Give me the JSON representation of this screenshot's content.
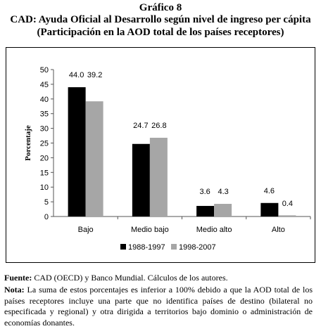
{
  "header": {
    "figure_number": "Gráfico 8",
    "title": "CAD: Ayuda Oficial al Desarrollo según nivel de ingreso per cápita",
    "subtitle": "(Participación en la AOD total de los países receptores)"
  },
  "chart_data": {
    "type": "bar",
    "categories": [
      "Bajo",
      "Medio bajo",
      "Medio alto",
      "Alto"
    ],
    "series": [
      {
        "name": "1988-1997",
        "values": [
          44.0,
          24.7,
          3.6,
          4.6
        ],
        "labels": [
          "44.0",
          "24.7",
          "3.6",
          "4.6"
        ],
        "color": "#000000"
      },
      {
        "name": "1998-2007",
        "values": [
          39.2,
          26.8,
          4.3,
          0.4
        ],
        "labels": [
          "39.2",
          "26.8",
          "4.3",
          "0.4"
        ],
        "color": "#a6a6a6"
      }
    ],
    "ylabel": "Porcentaje",
    "xlabel": "",
    "ylim": [
      0,
      50
    ],
    "yticks": [
      0,
      5,
      10,
      15,
      20,
      25,
      30,
      35,
      40,
      45,
      50
    ],
    "grid": false,
    "legend": "bottom"
  },
  "footer": {
    "source_label": "Fuente:",
    "source_text": " CAD (OECD) y Banco Mundial. Cálculos de los autores.",
    "note_label": "Nota:",
    "note_text": " La suma de estos porcentajes es inferior a 100% debido a que la AOD total de los países receptores incluye una parte que no identifica países de destino (bilateral no especificada y regional) y otra dirigida a territorios bajo dominio o administración de economías donantes."
  }
}
